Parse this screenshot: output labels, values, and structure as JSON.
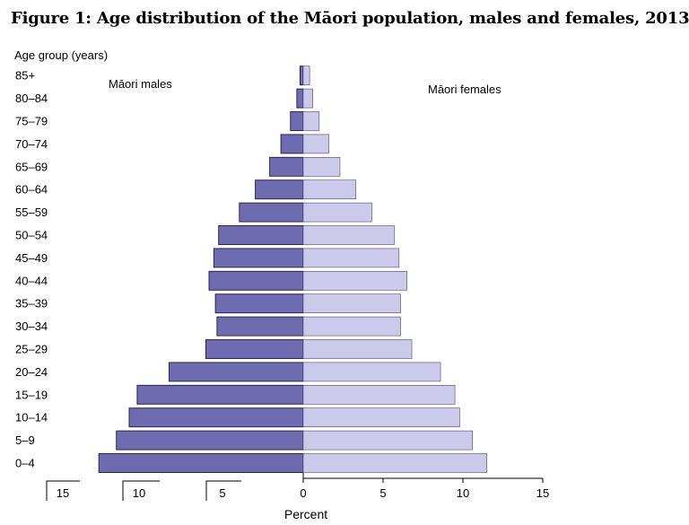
{
  "title": "Figure 1: Age distribution of the Māori population, males and females, 2013",
  "chart_data": {
    "type": "bar",
    "orientation": "horizontal-pyramid",
    "title": "Figure 1: Age distribution of the Māori population, males and females, 2013",
    "ylabel": "Age group (years)",
    "xlabel": "Percent",
    "categories": [
      "0–4",
      "5–9",
      "10–14",
      "15–19",
      "20–24",
      "25–29",
      "30–34",
      "35–39",
      "40–44",
      "45–49",
      "50–54",
      "55–59",
      "60–64",
      "65–69",
      "70–74",
      "75–79",
      "80–84",
      "85+"
    ],
    "series": [
      {
        "name": "Māori males",
        "color": "#6e6bb1",
        "values": [
          12.8,
          11.7,
          10.9,
          10.4,
          8.4,
          6.1,
          5.4,
          5.5,
          5.9,
          5.6,
          5.3,
          4.0,
          3.0,
          2.1,
          1.4,
          0.8,
          0.4,
          0.2
        ]
      },
      {
        "name": "Māori females",
        "color": "#cccaeb",
        "values": [
          11.5,
          10.6,
          9.8,
          9.5,
          8.6,
          6.8,
          6.1,
          6.1,
          6.5,
          6.0,
          5.7,
          4.3,
          3.3,
          2.3,
          1.6,
          1.0,
          0.6,
          0.4
        ]
      }
    ],
    "left_ticks": [
      "15",
      "10",
      "5"
    ],
    "right_ticks": [
      "0",
      "5",
      "10",
      "15"
    ],
    "xlim": [
      -15,
      15
    ],
    "grid": false
  }
}
